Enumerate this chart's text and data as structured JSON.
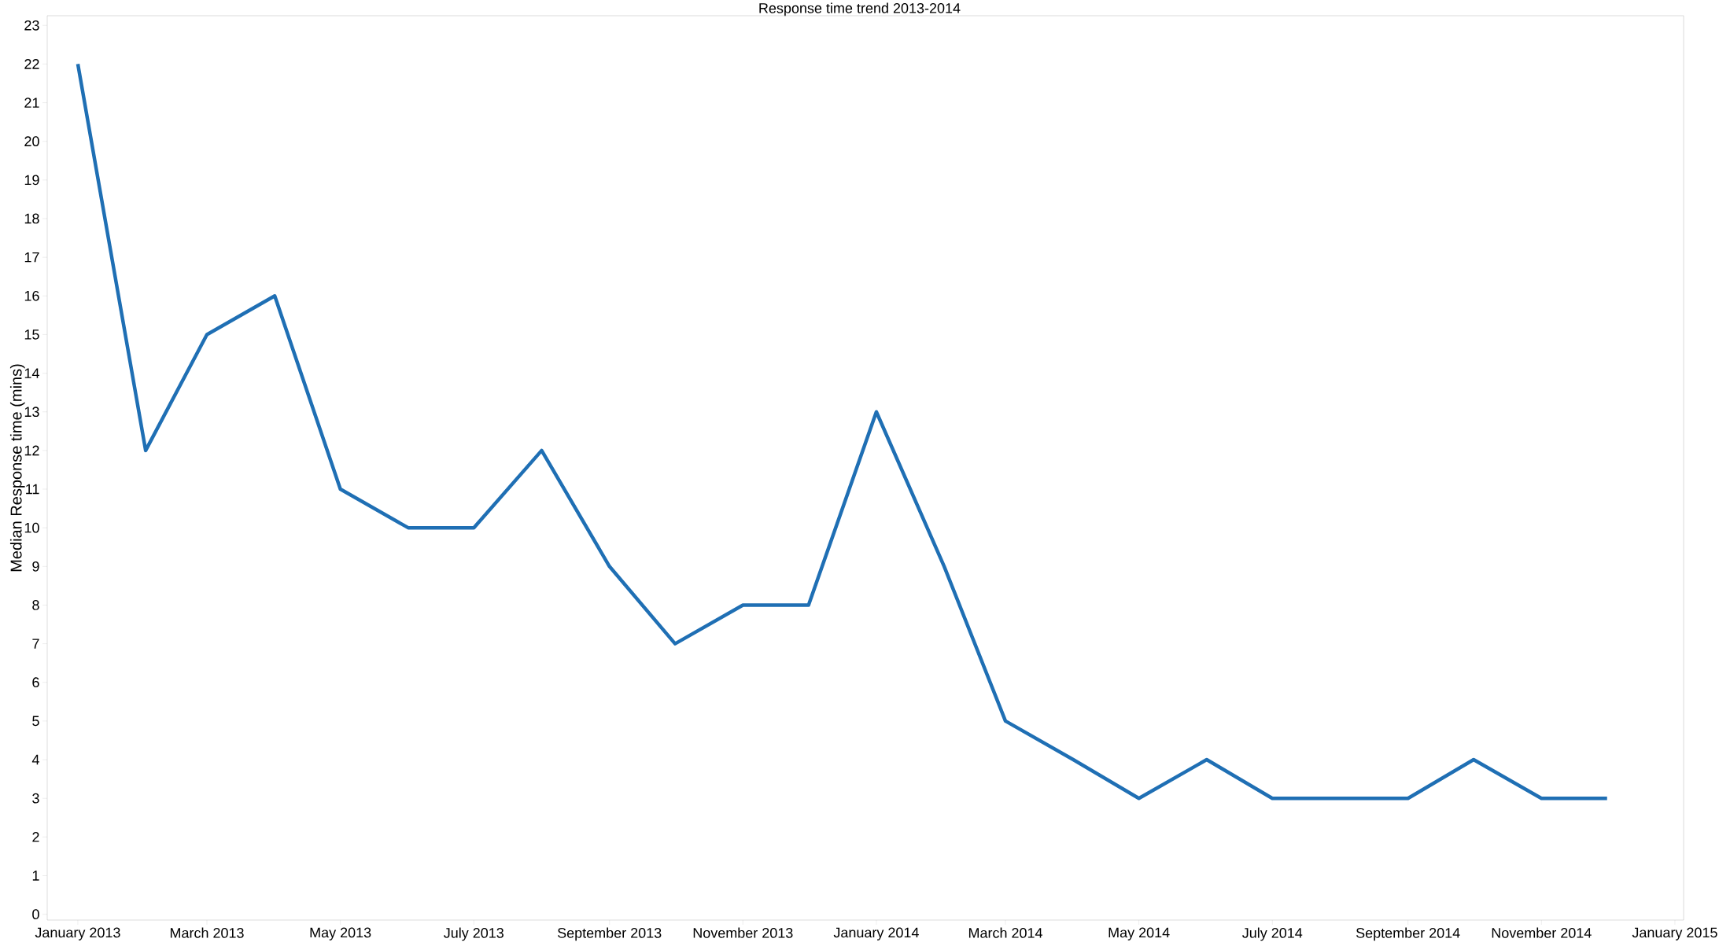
{
  "chart_data": {
    "type": "line",
    "title": "Response time trend 2013-2014",
    "ylabel": "Median Response time (mins)",
    "x": [
      "2013-01",
      "2013-02",
      "2013-03",
      "2013-04",
      "2013-05",
      "2013-06",
      "2013-07",
      "2013-08",
      "2013-09",
      "2013-10",
      "2013-11",
      "2013-12",
      "2014-01",
      "2014-02",
      "2014-03",
      "2014-04",
      "2014-05",
      "2014-06",
      "2014-07",
      "2014-08",
      "2014-09",
      "2014-10",
      "2014-11",
      "2014-12"
    ],
    "series": [
      {
        "color": "#1f6fb4",
        "values": [
          22,
          12,
          15,
          16,
          11,
          10,
          10,
          12,
          9,
          7,
          8,
          8,
          13,
          9,
          5,
          4,
          3,
          4,
          3,
          3,
          3,
          4,
          3,
          3
        ]
      }
    ],
    "xlim": [
      "2012-12-18",
      "2015-01-05"
    ],
    "xticks": [
      {
        "value": "2013-01",
        "label": "January 2013"
      },
      {
        "value": "2013-03",
        "label": "March 2013"
      },
      {
        "value": "2013-05",
        "label": "May 2013"
      },
      {
        "value": "2013-07",
        "label": "July 2013"
      },
      {
        "value": "2013-09",
        "label": "September 2013"
      },
      {
        "value": "2013-11",
        "label": "November 2013"
      },
      {
        "value": "2014-01",
        "label": "January 2014"
      },
      {
        "value": "2014-03",
        "label": "March 2014"
      },
      {
        "value": "2014-05",
        "label": "May 2014"
      },
      {
        "value": "2014-07",
        "label": "July 2014"
      },
      {
        "value": "2014-09",
        "label": "September 2014"
      },
      {
        "value": "2014-11",
        "label": "November 2014"
      },
      {
        "value": "2015-01",
        "label": "January 2015"
      }
    ],
    "ylim": [
      -0.15,
      23.25
    ],
    "yticks": [
      0,
      1,
      2,
      3,
      4,
      5,
      6,
      7,
      8,
      9,
      10,
      11,
      12,
      13,
      14,
      15,
      16,
      17,
      18,
      19,
      20,
      21,
      22,
      23
    ],
    "grid": false,
    "marker": "none",
    "line_style": "solid"
  }
}
